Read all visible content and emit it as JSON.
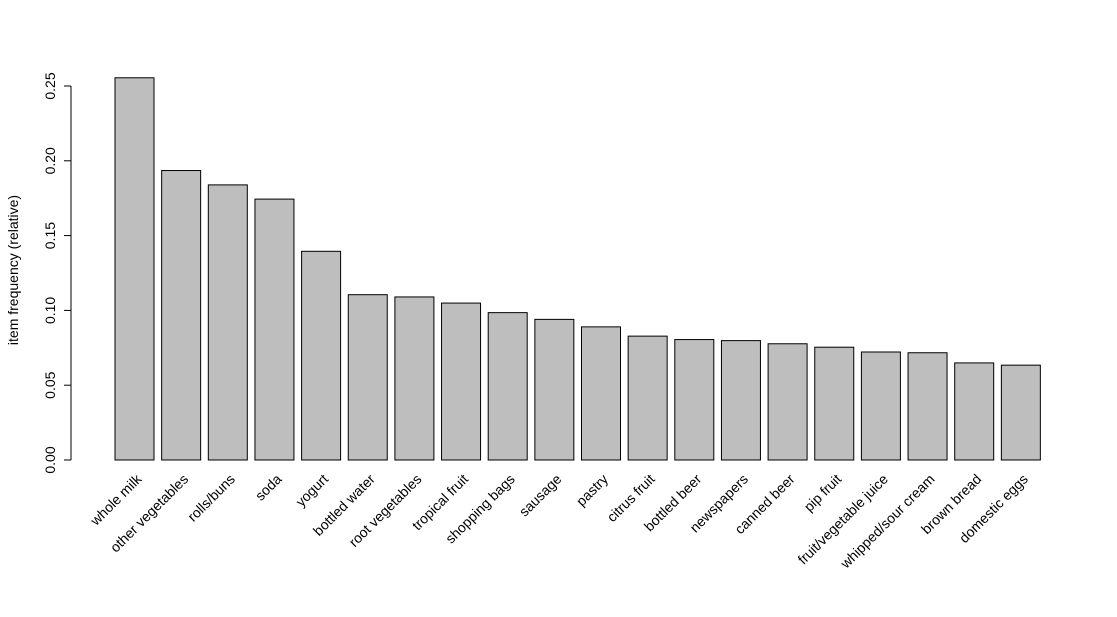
{
  "chart_data": {
    "type": "bar",
    "title": "",
    "xlabel": "",
    "ylabel": "item frequency (relative)",
    "ylim": [
      0,
      0.255
    ],
    "yticks": [
      0.0,
      0.05,
      0.1,
      0.15,
      0.2,
      0.25
    ],
    "ytick_labels": [
      "0.00",
      "0.05",
      "0.10",
      "0.15",
      "0.20",
      "0.25"
    ],
    "grid": false,
    "bar_color": "#bebebe",
    "bar_border_color": "#000000",
    "categories": [
      "whole milk",
      "other vegetables",
      "rolls/buns",
      "soda",
      "yogurt",
      "bottled water",
      "root vegetables",
      "tropical fruit",
      "shopping bags",
      "sausage",
      "pastry",
      "citrus fruit",
      "bottled beer",
      "newspapers",
      "canned beer",
      "pip fruit",
      "fruit/vegetable juice",
      "whipped/sour cream",
      "brown bread",
      "domestic eggs"
    ],
    "values": [
      0.2555,
      0.1935,
      0.1839,
      0.1744,
      0.1395,
      0.1105,
      0.109,
      0.1049,
      0.0985,
      0.094,
      0.089,
      0.0828,
      0.0805,
      0.0798,
      0.0777,
      0.0754,
      0.0722,
      0.0717,
      0.0649,
      0.0634
    ]
  }
}
